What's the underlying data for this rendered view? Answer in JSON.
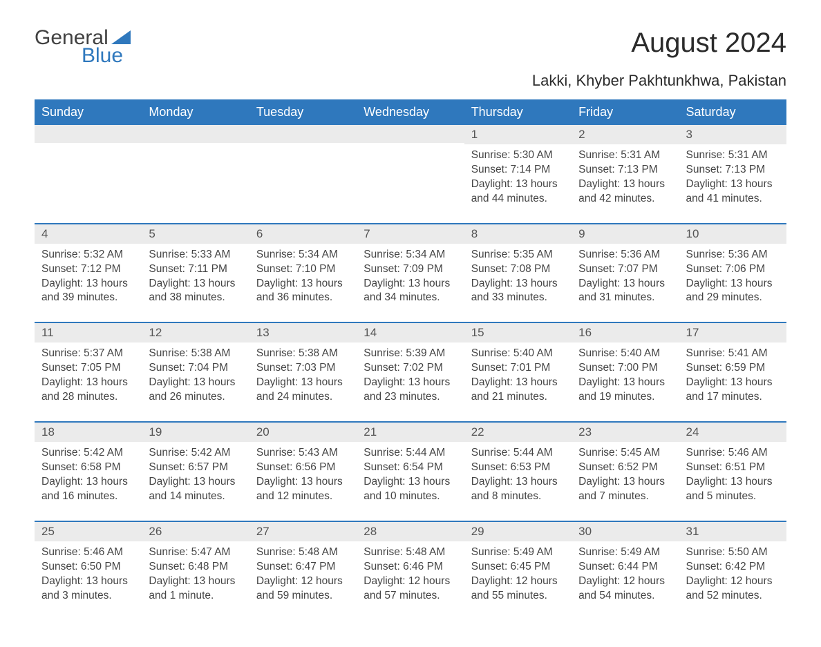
{
  "brand": {
    "word1": "General",
    "word2": "Blue"
  },
  "title": "August 2024",
  "location": "Lakki, Khyber Pakhtunkhwa, Pakistan",
  "colors": {
    "header_bg": "#2f78bd",
    "header_text": "#ffffff",
    "daynum_bg": "#ebebeb",
    "body_text": "#444444",
    "border": "#2f78bd",
    "page_bg": "#ffffff"
  },
  "fonts": {
    "title_size_pt": 40,
    "location_size_pt": 22,
    "th_size_pt": 18,
    "daynum_size_pt": 17,
    "body_size_pt": 15.5
  },
  "weekdays": [
    "Sunday",
    "Monday",
    "Tuesday",
    "Wednesday",
    "Thursday",
    "Friday",
    "Saturday"
  ],
  "weeks": [
    [
      null,
      null,
      null,
      null,
      {
        "n": "1",
        "sunrise": "Sunrise: 5:30 AM",
        "sunset": "Sunset: 7:14 PM",
        "day": "Daylight: 13 hours and 44 minutes."
      },
      {
        "n": "2",
        "sunrise": "Sunrise: 5:31 AM",
        "sunset": "Sunset: 7:13 PM",
        "day": "Daylight: 13 hours and 42 minutes."
      },
      {
        "n": "3",
        "sunrise": "Sunrise: 5:31 AM",
        "sunset": "Sunset: 7:13 PM",
        "day": "Daylight: 13 hours and 41 minutes."
      }
    ],
    [
      {
        "n": "4",
        "sunrise": "Sunrise: 5:32 AM",
        "sunset": "Sunset: 7:12 PM",
        "day": "Daylight: 13 hours and 39 minutes."
      },
      {
        "n": "5",
        "sunrise": "Sunrise: 5:33 AM",
        "sunset": "Sunset: 7:11 PM",
        "day": "Daylight: 13 hours and 38 minutes."
      },
      {
        "n": "6",
        "sunrise": "Sunrise: 5:34 AM",
        "sunset": "Sunset: 7:10 PM",
        "day": "Daylight: 13 hours and 36 minutes."
      },
      {
        "n": "7",
        "sunrise": "Sunrise: 5:34 AM",
        "sunset": "Sunset: 7:09 PM",
        "day": "Daylight: 13 hours and 34 minutes."
      },
      {
        "n": "8",
        "sunrise": "Sunrise: 5:35 AM",
        "sunset": "Sunset: 7:08 PM",
        "day": "Daylight: 13 hours and 33 minutes."
      },
      {
        "n": "9",
        "sunrise": "Sunrise: 5:36 AM",
        "sunset": "Sunset: 7:07 PM",
        "day": "Daylight: 13 hours and 31 minutes."
      },
      {
        "n": "10",
        "sunrise": "Sunrise: 5:36 AM",
        "sunset": "Sunset: 7:06 PM",
        "day": "Daylight: 13 hours and 29 minutes."
      }
    ],
    [
      {
        "n": "11",
        "sunrise": "Sunrise: 5:37 AM",
        "sunset": "Sunset: 7:05 PM",
        "day": "Daylight: 13 hours and 28 minutes."
      },
      {
        "n": "12",
        "sunrise": "Sunrise: 5:38 AM",
        "sunset": "Sunset: 7:04 PM",
        "day": "Daylight: 13 hours and 26 minutes."
      },
      {
        "n": "13",
        "sunrise": "Sunrise: 5:38 AM",
        "sunset": "Sunset: 7:03 PM",
        "day": "Daylight: 13 hours and 24 minutes."
      },
      {
        "n": "14",
        "sunrise": "Sunrise: 5:39 AM",
        "sunset": "Sunset: 7:02 PM",
        "day": "Daylight: 13 hours and 23 minutes."
      },
      {
        "n": "15",
        "sunrise": "Sunrise: 5:40 AM",
        "sunset": "Sunset: 7:01 PM",
        "day": "Daylight: 13 hours and 21 minutes."
      },
      {
        "n": "16",
        "sunrise": "Sunrise: 5:40 AM",
        "sunset": "Sunset: 7:00 PM",
        "day": "Daylight: 13 hours and 19 minutes."
      },
      {
        "n": "17",
        "sunrise": "Sunrise: 5:41 AM",
        "sunset": "Sunset: 6:59 PM",
        "day": "Daylight: 13 hours and 17 minutes."
      }
    ],
    [
      {
        "n": "18",
        "sunrise": "Sunrise: 5:42 AM",
        "sunset": "Sunset: 6:58 PM",
        "day": "Daylight: 13 hours and 16 minutes."
      },
      {
        "n": "19",
        "sunrise": "Sunrise: 5:42 AM",
        "sunset": "Sunset: 6:57 PM",
        "day": "Daylight: 13 hours and 14 minutes."
      },
      {
        "n": "20",
        "sunrise": "Sunrise: 5:43 AM",
        "sunset": "Sunset: 6:56 PM",
        "day": "Daylight: 13 hours and 12 minutes."
      },
      {
        "n": "21",
        "sunrise": "Sunrise: 5:44 AM",
        "sunset": "Sunset: 6:54 PM",
        "day": "Daylight: 13 hours and 10 minutes."
      },
      {
        "n": "22",
        "sunrise": "Sunrise: 5:44 AM",
        "sunset": "Sunset: 6:53 PM",
        "day": "Daylight: 13 hours and 8 minutes."
      },
      {
        "n": "23",
        "sunrise": "Sunrise: 5:45 AM",
        "sunset": "Sunset: 6:52 PM",
        "day": "Daylight: 13 hours and 7 minutes."
      },
      {
        "n": "24",
        "sunrise": "Sunrise: 5:46 AM",
        "sunset": "Sunset: 6:51 PM",
        "day": "Daylight: 13 hours and 5 minutes."
      }
    ],
    [
      {
        "n": "25",
        "sunrise": "Sunrise: 5:46 AM",
        "sunset": "Sunset: 6:50 PM",
        "day": "Daylight: 13 hours and 3 minutes."
      },
      {
        "n": "26",
        "sunrise": "Sunrise: 5:47 AM",
        "sunset": "Sunset: 6:48 PM",
        "day": "Daylight: 13 hours and 1 minute."
      },
      {
        "n": "27",
        "sunrise": "Sunrise: 5:48 AM",
        "sunset": "Sunset: 6:47 PM",
        "day": "Daylight: 12 hours and 59 minutes."
      },
      {
        "n": "28",
        "sunrise": "Sunrise: 5:48 AM",
        "sunset": "Sunset: 6:46 PM",
        "day": "Daylight: 12 hours and 57 minutes."
      },
      {
        "n": "29",
        "sunrise": "Sunrise: 5:49 AM",
        "sunset": "Sunset: 6:45 PM",
        "day": "Daylight: 12 hours and 55 minutes."
      },
      {
        "n": "30",
        "sunrise": "Sunrise: 5:49 AM",
        "sunset": "Sunset: 6:44 PM",
        "day": "Daylight: 12 hours and 54 minutes."
      },
      {
        "n": "31",
        "sunrise": "Sunrise: 5:50 AM",
        "sunset": "Sunset: 6:42 PM",
        "day": "Daylight: 12 hours and 52 minutes."
      }
    ]
  ]
}
